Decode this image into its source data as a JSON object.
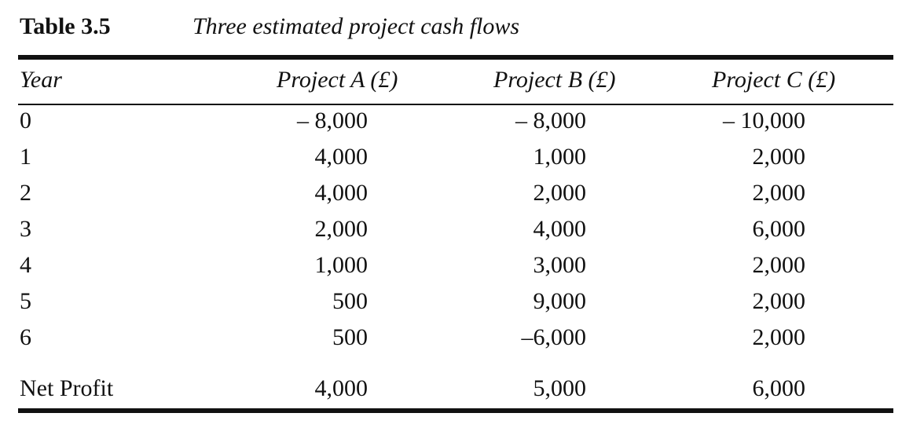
{
  "caption": {
    "number": "Table 3.5",
    "title": "Three estimated project cash flows"
  },
  "headers": {
    "year": "Year",
    "project_a": "Project A (£)",
    "project_b": "Project B (£)",
    "project_c": "Project C (£)"
  },
  "rows": [
    {
      "year": "0",
      "a": "– 8,000",
      "b": "– 8,000",
      "c": "– 10,000"
    },
    {
      "year": "1",
      "a": "4,000",
      "b": "1,000",
      "c": "2,000"
    },
    {
      "year": "2",
      "a": "4,000",
      "b": "2,000",
      "c": "2,000"
    },
    {
      "year": "3",
      "a": "2,000",
      "b": "4,000",
      "c": "6,000"
    },
    {
      "year": "4",
      "a": "1,000",
      "b": "3,000",
      "c": "2,000"
    },
    {
      "year": "5",
      "a": "500",
      "b": "9,000",
      "c": "2,000"
    },
    {
      "year": "6",
      "a": "500",
      "b": "–6,000",
      "c": "2,000"
    }
  ],
  "totals": {
    "label": "Net Profit",
    "a": "4,000",
    "b": "5,000",
    "c": "6,000"
  }
}
